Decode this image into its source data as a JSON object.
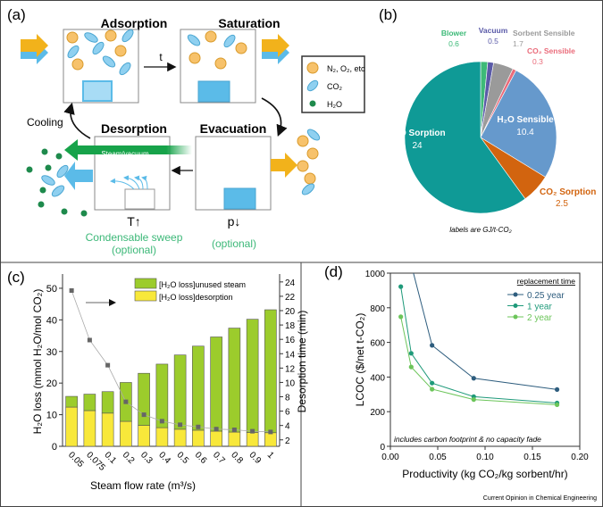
{
  "panels": {
    "a": "(a)",
    "b": "(b)",
    "c": "(c)",
    "d": "(d)"
  },
  "diagram": {
    "steps": {
      "adsorption": "Adsorption",
      "saturation": "Saturation",
      "desorption": "Desorption",
      "evacuation": "Evacuation"
    },
    "t_label": "t",
    "cooling": "Cooling",
    "steam_vacuum": "Steam/vacuum",
    "t_up": "T↑",
    "p_down": "p↓",
    "condensable_sweep": "Condensable sweep",
    "optional": "(optional)",
    "optional2": "(optional)",
    "legend": [
      {
        "label": "N₂, O₂, etc",
        "shape": "circle",
        "color": "#f7c26b"
      },
      {
        "label": "CO₂",
        "shape": "ellipse",
        "color": "#7cc8ee"
      },
      {
        "label": "H₂O",
        "shape": "dot",
        "color": "#1e8a4c"
      }
    ],
    "colors": {
      "feed": "#f2b21b",
      "co2": "#5bbbe8",
      "steam": "#17a34a",
      "sorbent": "#5bbbe8"
    }
  },
  "chart_data": [
    {
      "type": "pie",
      "panel": "b",
      "note": "labels are GJ/t-CO₂",
      "slices": [
        {
          "label": "Blower",
          "value": 0.6,
          "color": "#3dba78"
        },
        {
          "label": "Vacuum",
          "value": 0.5,
          "color": "#5a5aa8"
        },
        {
          "label": "Sorbent Sensible",
          "value": 1.7,
          "color": "#9a9a9a"
        },
        {
          "label": "CO₂ Sensible",
          "value": 0.3,
          "color": "#ea6b7a"
        },
        {
          "label": "H₂O Sensible",
          "value": 10.4,
          "color": "#6699cc"
        },
        {
          "label": "CO₂ Sorption",
          "value": 2.5,
          "color": "#d2640f"
        },
        {
          "label": "H₂O Sorption",
          "value": 24,
          "color": "#0f9a96"
        }
      ]
    },
    {
      "type": "bar",
      "panel": "c",
      "stacked": true,
      "xlabel": "Steam flow rate (m³/s)",
      "ylabel": "H₂O loss (mmol H₂O/mol CO₂)",
      "y2label": "Desorption time (min)",
      "categories": [
        "0.05",
        "0.075",
        "0.1",
        "0.2",
        "0.3",
        "0.4",
        "0.5",
        "0.6",
        "0.7",
        "0.8",
        "0.9",
        "1"
      ],
      "ylim": [
        0,
        54.5
      ],
      "yticks": [
        0,
        10,
        20,
        30,
        40,
        50
      ],
      "y2lim": [
        1.1,
        25.1
      ],
      "y2ticks": [
        2,
        4,
        6,
        8,
        10,
        12,
        14,
        16,
        18,
        20,
        22,
        24
      ],
      "series": [
        {
          "name": "[H₂O loss]desorption",
          "color": "#f8e83a",
          "values": [
            12.4,
            11.3,
            10.5,
            7.9,
            6.6,
            5.9,
            5.4,
            5.1,
            4.8,
            4.5,
            4.4,
            4.3
          ]
        },
        {
          "name": "[H₂O loss]unused steam",
          "color": "#9ccc2c",
          "values": [
            3.4,
            5.2,
            6.8,
            12.3,
            16.5,
            20.1,
            23.5,
            26.6,
            29.8,
            32.9,
            35.8,
            38.9
          ]
        }
      ],
      "line_series": {
        "axis": "right",
        "color": "#666666",
        "values": [
          22.8,
          15.9,
          12.4,
          7.3,
          5.5,
          4.6,
          4.1,
          3.8,
          3.5,
          3.4,
          3.2,
          3.1
        ]
      },
      "legend_position": "top"
    },
    {
      "type": "line",
      "panel": "d",
      "xlabel": "Productivity (kg CO₂/kg sorbent/hr)",
      "ylabel": "LCOC ($/net t-CO₂)",
      "xlim": [
        0,
        0.2
      ],
      "ylim": [
        0,
        1000
      ],
      "xticks": [
        "0.00",
        "0.05",
        "0.10",
        "0.15",
        "0.20"
      ],
      "yticks": [
        0,
        200,
        400,
        600,
        800,
        1000
      ],
      "legend_title": "replacement time",
      "legend_position": "top-right",
      "annotation": "includes carbon footprint & no capacity fade",
      "series": [
        {
          "name": "0.25 year",
          "color": "#2e5d7e",
          "x": [
            0.022,
            0.044,
            0.088,
            0.176
          ],
          "y": [
            1050,
            583,
            393,
            328
          ]
        },
        {
          "name": "1 year",
          "color": "#1f9a7a",
          "x": [
            0.011,
            0.022,
            0.044,
            0.088,
            0.176
          ],
          "y": [
            922,
            537,
            365,
            287,
            250
          ]
        },
        {
          "name": "2 year",
          "color": "#6cc55a",
          "x": [
            0.011,
            0.022,
            0.044,
            0.088,
            0.176
          ],
          "y": [
            748,
            458,
            330,
            270,
            240
          ]
        }
      ]
    }
  ],
  "footer": "Current Opinion in Chemical Engineering"
}
